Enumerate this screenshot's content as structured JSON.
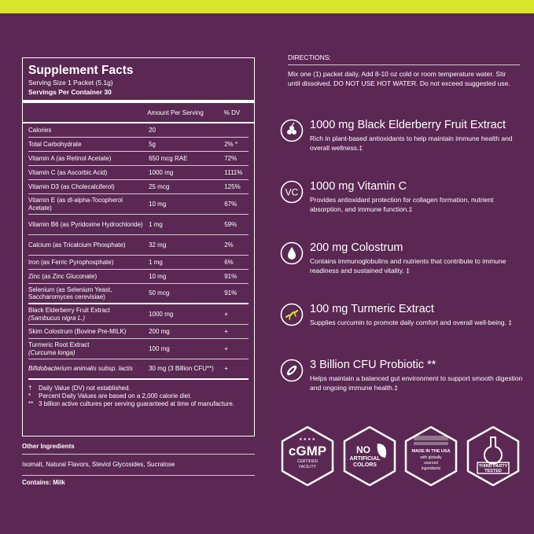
{
  "supplement_facts": {
    "title": "Supplement Facts",
    "serving_size": "Serving Size 1 Packet (5.1g)",
    "servings_label": "Servings Per Container",
    "servings_value": "30",
    "header_amount": "Amount Per Serving",
    "header_dv": "% DV",
    "rows": [
      {
        "name": "Calories",
        "amount": "20",
        "dv": ""
      },
      {
        "name": "Total Carbohydrate",
        "amount": "5g",
        "dv": "2% *"
      },
      {
        "name": "Vitamin A (as Retinol Acetate)",
        "amount": "650 mcg RAE",
        "dv": "72%"
      },
      {
        "name": "Vitamin C (as Ascorbic Acid)",
        "amount": "1000 mg",
        "dv": "1111%"
      },
      {
        "name": "Vitamin D3 (as Cholecalciferol)",
        "amount": "25 mcg",
        "dv": "125%"
      },
      {
        "name": "Vitamin E (as dl-alpha-Tocopherol Acetate)",
        "amount": "10 mg",
        "dv": "67%"
      },
      {
        "name": "Vitamin B6 (as Pyridoxine Hydrochloride)",
        "amount": "1 mg",
        "dv": "59%"
      },
      {
        "name": "Calcium (as Tricalcium Phosphate)",
        "amount": "32 mg",
        "dv": "2%"
      },
      {
        "name": "Iron (as Ferric Pyrophosphate)",
        "amount": "1 mg",
        "dv": "6%"
      },
      {
        "name": "Zinc (as Zinc Gluconate)",
        "amount": "10 mg",
        "dv": "91%"
      },
      {
        "name": "Selenium (as Selenium Yeast, Saccharomyces cerevisiae)",
        "amount": "50 mcg",
        "dv": "91%"
      }
    ],
    "botanicals": [
      {
        "name": "Black Elderberry Fruit Extract",
        "sub": "(Sambucus nigra L.)",
        "amount": "1000 mg",
        "dv": "+"
      },
      {
        "name": "Skim Colostrum (Bovine Pre-MILK)",
        "sub": "",
        "amount": "200 mg",
        "dv": "+"
      },
      {
        "name": "Turmeric Root Extract",
        "sub": "(Curcuma longa)",
        "amount": "100 mg",
        "dv": "+"
      },
      {
        "name": "Bifidobacterium animalis subsp. lactis",
        "sub": "",
        "amount": "30 mg (3 Billion CFU**)",
        "dv": "+"
      }
    ],
    "footnotes": [
      {
        "sym": "†",
        "text": "Daily Value (DV) not established."
      },
      {
        "sym": "*",
        "text": "Percent Daily Values are based on a 2,000 calorie diet."
      },
      {
        "sym": "**",
        "text": "3 billion active cultures per serving guaranteed at time of manufacture."
      }
    ]
  },
  "other_ingredients": {
    "heading": "Other Ingredients",
    "list": "Isomalt, Natural Flavors, Steviol Glycosides, Sucralose",
    "contains": "Contains: Milk"
  },
  "directions": {
    "heading": "DIRECTIONS:",
    "text": "Mix one (1) packet daily. Add 8-10 oz cold or room temperature water. Stir until dissolved. DO NOT USE HOT WATER. Do not exceed suggested use."
  },
  "benefits": [
    {
      "icon": "elderberry-icon",
      "title": "1000 mg Black Elderberry Fruit Extract",
      "text": "Rich in plant-based antioxidants to help maintain immune health and overall wellness.‡"
    },
    {
      "icon": "vitamin-c-icon",
      "icon_text": "VC",
      "title": "1000 mg Vitamin C",
      "text": "Provides antioxidant protection for collagen formation, nutrient absorption, and immune function.‡"
    },
    {
      "icon": "milk-drop-icon",
      "title": "200 mg Colostrum",
      "text": "Contains immunoglobulins and nutrients that contribute to immune readiness and sustained vitality. ‡"
    },
    {
      "icon": "turmeric-root-icon",
      "title": "100 mg Turmeric Extract",
      "text": "Supplies curcumin to promote daily comfort and overall well-being. ‡"
    },
    {
      "icon": "probiotic-icon",
      "title": "3 Billion CFU Probiotic **",
      "text": "Helps maintain a balanced gut environment to support smooth digestion and ongoing immune health.‡"
    }
  ],
  "badges": {
    "cgmp": {
      "stars": "★★★★",
      "big": "cGMP",
      "small1": "CERTIFIED",
      "small2": "FACILITY"
    },
    "no_artificial": {
      "l1": "NO",
      "l2": "ARTIFICIAL",
      "l3": "COLORS"
    },
    "usa": {
      "l1": "MADE IN THE USA",
      "l2": "with globally",
      "l3": "sourced",
      "l4": "ingredients"
    },
    "third_party": {
      "l1": "THIRD PARTY",
      "l2": "TESTED"
    }
  },
  "colors": {
    "background": "#5a2853",
    "accent": "#d7e52b",
    "text": "#ffffff"
  }
}
